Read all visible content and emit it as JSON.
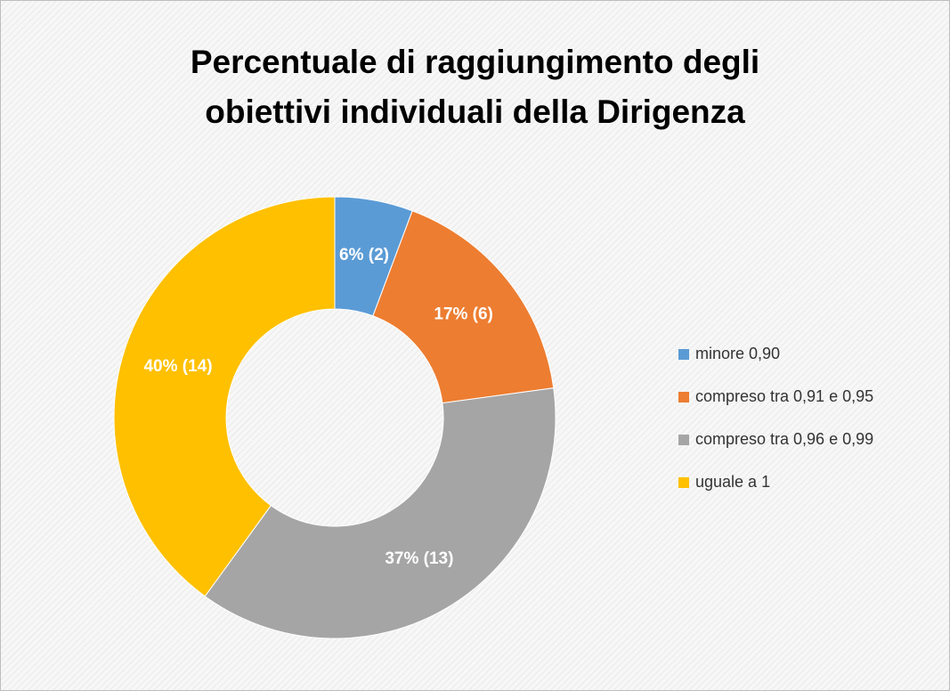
{
  "chart_data": {
    "type": "pie",
    "title": "Percentuale di raggiungimento degli\nobiettivi individuali della Dirigenza",
    "categories": [
      "minore 0,90",
      "compreso tra 0,91 e 0,95",
      "compreso tra 0,96 e 0,99",
      "uguale a 1"
    ],
    "values": [
      2,
      6,
      13,
      14
    ],
    "value_labels": [
      "6% (2)",
      "17% (6)",
      "37% (13)",
      "40% (14)"
    ],
    "colors": [
      "#5b9bd5",
      "#ed7d31",
      "#a5a5a5",
      "#ffc000"
    ],
    "donut": true,
    "legend": "right"
  }
}
